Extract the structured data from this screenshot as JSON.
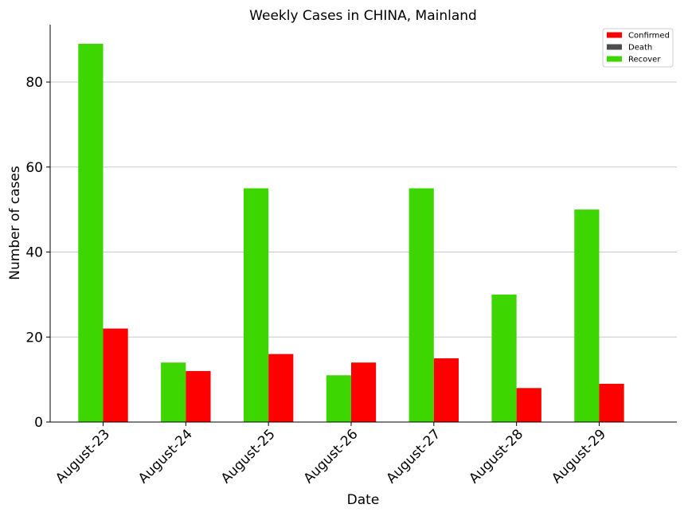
{
  "chart_data": {
    "type": "bar",
    "title": "Weekly Cases in CHINA, Mainland",
    "xlabel": "Date",
    "ylabel": "Number of cases",
    "categories": [
      "August-23",
      "August-24",
      "August-25",
      "August-26",
      "August-27",
      "August-28",
      "August-29"
    ],
    "series": [
      {
        "name": "Recover",
        "color": "#3dd600",
        "values": [
          89,
          14,
          55,
          11,
          55,
          30,
          50
        ]
      },
      {
        "name": "Confirmed",
        "color": "#ff0000",
        "values": [
          22,
          12,
          16,
          14,
          15,
          8,
          9
        ]
      },
      {
        "name": "Death",
        "color": "#4d4d4d",
        "values": [
          0,
          0,
          0,
          0,
          0,
          0,
          0
        ]
      }
    ],
    "legend_order": [
      "Confirmed",
      "Death",
      "Recover"
    ],
    "ylim": [
      0,
      93.5
    ],
    "yticks": [
      0,
      20,
      40,
      60,
      80
    ],
    "grid": "horizontal",
    "legend_position": "top-right"
  }
}
